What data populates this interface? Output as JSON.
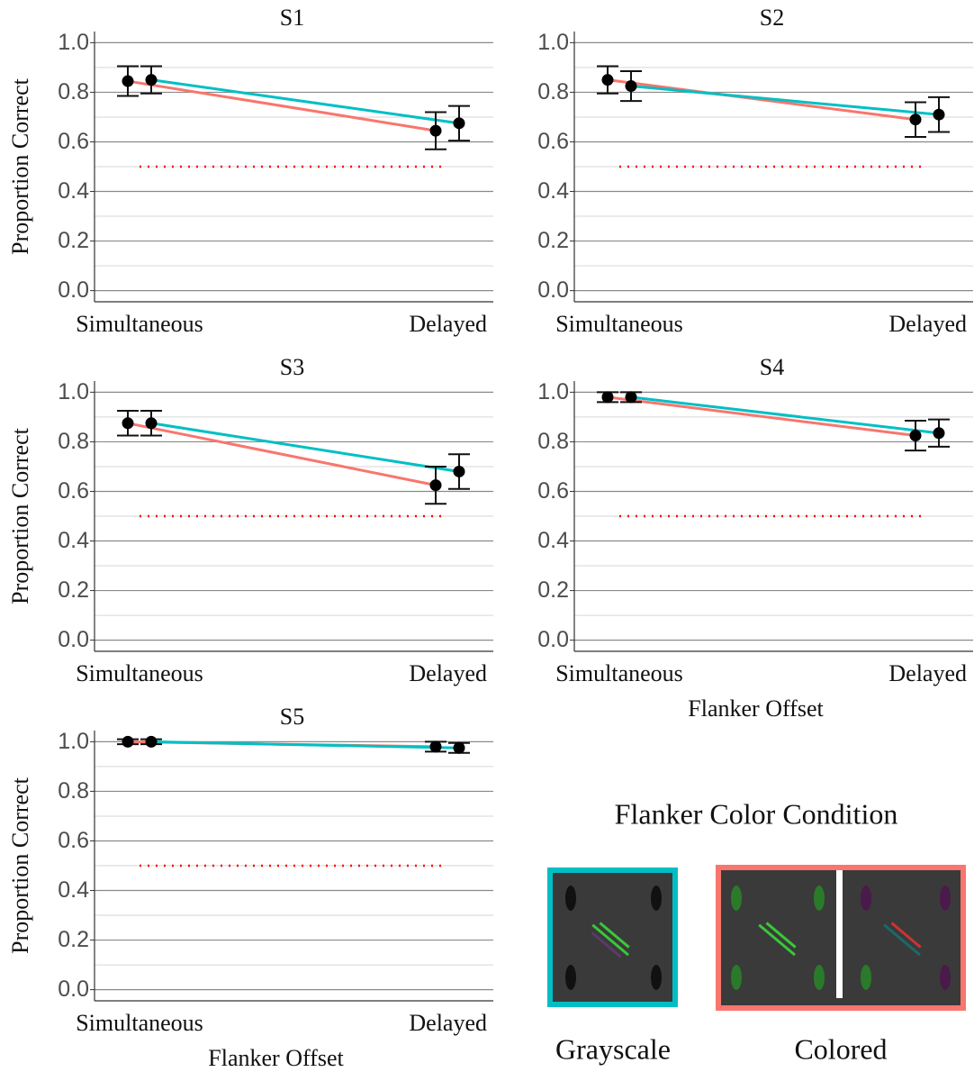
{
  "chart_data": [
    {
      "type": "line",
      "title": "S1",
      "ylabel": "Proportion Correct",
      "categories": [
        "Simultaneous",
        "Delayed"
      ],
      "series": [
        {
          "color": "#f8766d",
          "values": [
            0.845,
            0.645
          ],
          "errors": [
            0.06,
            0.075
          ]
        },
        {
          "color": "#00bfc4",
          "values": [
            0.85,
            0.675
          ],
          "errors": [
            0.055,
            0.07
          ]
        }
      ],
      "ylim": [
        -0.045,
        1.045
      ],
      "yticks": [
        {
          "value": 0,
          "label": "0.0"
        },
        0.2,
        0.4,
        0.6,
        0.8,
        {
          "value": 1,
          "label": "1.0"
        }
      ],
      "grid": true,
      "chance_line": 0.5,
      "chance_color": "#ff0000"
    },
    {
      "type": "line",
      "title": "S2",
      "categories": [
        "Simultaneous",
        "Delayed"
      ],
      "series": [
        {
          "color": "#f8766d",
          "values": [
            0.85,
            0.69
          ],
          "errors": [
            0.055,
            0.07
          ]
        },
        {
          "color": "#00bfc4",
          "values": [
            0.825,
            0.71
          ],
          "errors": [
            0.06,
            0.07
          ]
        }
      ],
      "ylim": [
        -0.045,
        1.045
      ],
      "yticks": [
        {
          "value": 0,
          "label": "0.0"
        },
        0.2,
        0.4,
        0.6,
        0.8,
        {
          "value": 1,
          "label": "1.0"
        }
      ],
      "grid": true,
      "chance_line": 0.5,
      "chance_color": "#ff0000"
    },
    {
      "type": "line",
      "title": "S3",
      "ylabel": "Proportion Correct",
      "categories": [
        "Simultaneous",
        "Delayed"
      ],
      "series": [
        {
          "color": "#f8766d",
          "values": [
            0.875,
            0.625
          ],
          "errors": [
            0.05,
            0.075
          ]
        },
        {
          "color": "#00bfc4",
          "values": [
            0.875,
            0.68
          ],
          "errors": [
            0.05,
            0.07
          ]
        }
      ],
      "ylim": [
        -0.045,
        1.045
      ],
      "yticks": [
        {
          "value": 0,
          "label": "0.0"
        },
        0.2,
        0.4,
        0.6,
        0.8,
        {
          "value": 1,
          "label": "1.0"
        }
      ],
      "grid": true,
      "chance_line": 0.5,
      "chance_color": "#ff0000"
    },
    {
      "type": "line",
      "title": "S4",
      "xlabel": "Flanker Offset",
      "categories": [
        "Simultaneous",
        "Delayed"
      ],
      "series": [
        {
          "color": "#f8766d",
          "values": [
            0.98,
            0.825
          ],
          "errors": [
            0.02,
            0.06
          ]
        },
        {
          "color": "#00bfc4",
          "values": [
            0.98,
            0.835
          ],
          "errors": [
            0.02,
            0.055
          ]
        }
      ],
      "ylim": [
        -0.045,
        1.045
      ],
      "yticks": [
        {
          "value": 0,
          "label": "0.0"
        },
        0.2,
        0.4,
        0.6,
        0.8,
        {
          "value": 1,
          "label": "1.0"
        }
      ],
      "grid": true,
      "chance_line": 0.5,
      "chance_color": "#ff0000"
    },
    {
      "type": "line",
      "title": "S5",
      "ylabel": "Proportion Correct",
      "xlabel": "Flanker Offset",
      "categories": [
        "Simultaneous",
        "Delayed"
      ],
      "series": [
        {
          "color": "#f8766d",
          "values": [
            1.0,
            0.98
          ],
          "errors": [
            0.01,
            0.02
          ]
        },
        {
          "color": "#00bfc4",
          "values": [
            1.0,
            0.975
          ],
          "errors": [
            0.01,
            0.02
          ]
        }
      ],
      "ylim": [
        -0.045,
        1.045
      ],
      "yticks": [
        {
          "value": 0,
          "label": "0.0"
        },
        0.2,
        0.4,
        0.6,
        0.8,
        {
          "value": 1,
          "label": "1.0"
        }
      ],
      "grid": true,
      "chance_line": 0.5,
      "chance_color": "#ff0000"
    }
  ],
  "legend": {
    "title": "Flanker Color Condition",
    "entries": [
      {
        "name": "Grayscale",
        "color": "#00bfc4"
      },
      {
        "name": "Colored",
        "color": "#f8766d"
      }
    ]
  }
}
